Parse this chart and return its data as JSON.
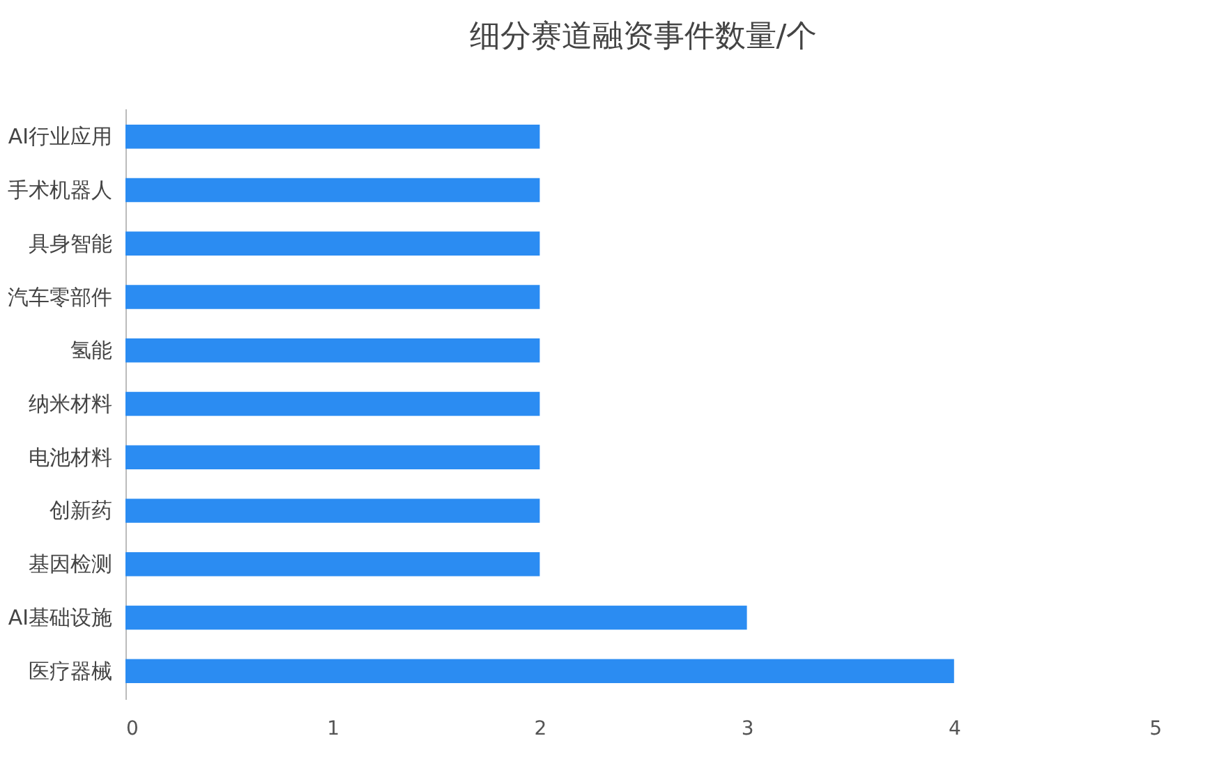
{
  "chart_data": {
    "type": "bar",
    "orientation": "horizontal",
    "title": "细分赛道融资事件数量/个",
    "categories": [
      "AI行业应用",
      "手术机器人",
      "具身智能",
      "汽车零部件",
      "氢能",
      "纳米材料",
      "电池材料",
      "创新药",
      "基因检测",
      "AI基础设施",
      "医疗器械"
    ],
    "values": [
      2,
      2,
      2,
      2,
      2,
      2,
      2,
      2,
      2,
      3,
      4
    ],
    "color": "#2b8cf2",
    "xlim": [
      0,
      5
    ],
    "xticks": [
      0,
      1,
      2,
      3,
      4,
      5
    ],
    "grid": false
  }
}
